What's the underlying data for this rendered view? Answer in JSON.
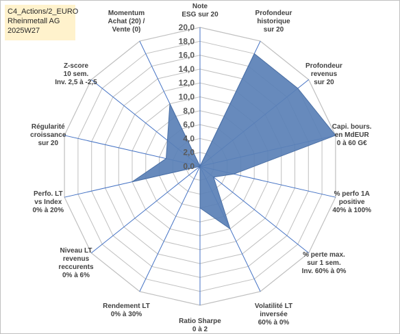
{
  "header": {
    "line1": "C4_Actions/2_EURO",
    "line2": "Rheinmetall AG",
    "line3": "2025W27"
  },
  "chart_data": {
    "type": "radar",
    "title": "",
    "rmin": 0,
    "rmax": 20,
    "tick_step": 2,
    "ticks": [
      "0,0",
      "2,0",
      "4,0",
      "6,0",
      "8,0",
      "10,0",
      "12,0",
      "14,0",
      "16,0",
      "18,0",
      "20,0"
    ],
    "grid": true,
    "colors": {
      "fill": "#5a80b6",
      "stroke": "#4a6fa5",
      "grid": "#bfbfbf",
      "spoke": "#4472c4"
    },
    "axes": [
      {
        "label": [
          "Note",
          "ESG sur 20"
        ],
        "value": 0
      },
      {
        "label": [
          "Profondeur",
          "historique",
          "sur 20"
        ],
        "value": 18
      },
      {
        "label": [
          "Profondeur",
          "revenus",
          "sur 20"
        ],
        "value": 18
      },
      {
        "label": [
          "Capi. bours.",
          "en MdEUR",
          "0 à 60 G€"
        ],
        "value": 20
      },
      {
        "label": [
          "% perfo 1A",
          "positive",
          "40% à 100%"
        ],
        "value": 5
      },
      {
        "label": [
          "% perte max.",
          "sur 1 sem.",
          "Inv. 60% à 0%"
        ],
        "value": 2.5
      },
      {
        "label": [
          "Volatilité LT",
          "inversée",
          "60% à 0%"
        ],
        "value": 10
      },
      {
        "label": [
          "Ratio Sharpe",
          "0 à 2"
        ],
        "value": 6
      },
      {
        "label": [
          "Rendement LT",
          "0% à 30%"
        ],
        "value": 0
      },
      {
        "label": [
          "Niveau LT",
          "revenus",
          "reccurents",
          "0% à 6%"
        ],
        "value": 0
      },
      {
        "label": [
          "Perfo. LT",
          "vs Index",
          "0% à 20%"
        ],
        "value": 10
      },
      {
        "label": [
          "Régularité",
          "croissance",
          "sur 20"
        ],
        "value": 5
      },
      {
        "label": [
          "Z-score",
          "10 sem.",
          "Inv. 2,5 à -2,5"
        ],
        "value": 6
      },
      {
        "label": [
          "Momentum",
          "Achat (20) /",
          "Vente (0)"
        ],
        "value": 10
      }
    ]
  }
}
